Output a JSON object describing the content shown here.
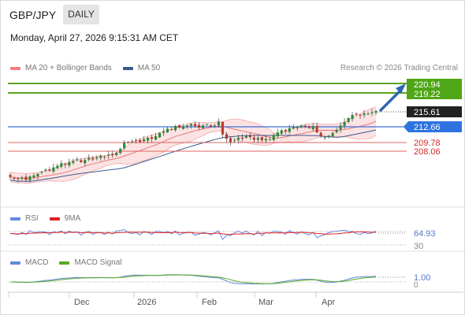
{
  "header": {
    "symbol": "GBP/JPY",
    "timeframe": "DAILY",
    "datetime": "Monday, April 27, 2026 9:15:31 AM CET"
  },
  "legend": {
    "bollinger": "MA 20 + Bollinger Bands",
    "ma50": "MA 50",
    "credit": "Research © 2026 Trading Central"
  },
  "colors": {
    "up_candle": "#2e8b3a",
    "down_candle": "#c0392b",
    "bollinger": "#f08080",
    "ma50": "#3a5a8c",
    "resistance": "#5aa51e",
    "pivot": "#3b6fd6",
    "support": "#e06060",
    "arrow": "#2f66b3",
    "rsi": "#6688dd",
    "rsi_ma": "#dd2222",
    "macd": "#6688dd",
    "macd_signal": "#55aa22"
  },
  "price_levels": [
    {
      "value": "220.94",
      "kind": "resistance"
    },
    {
      "value": "219.22",
      "kind": "resistance"
    },
    {
      "value": "215.61",
      "kind": "last"
    },
    {
      "value": "212.66",
      "kind": "pivot"
    },
    {
      "value": "209.78",
      "kind": "support"
    },
    {
      "value": "208.06",
      "kind": "support"
    }
  ],
  "rsi": {
    "label": "RSI",
    "ma_label": "9MA",
    "value": "64.93",
    "level_low": "30"
  },
  "macd": {
    "label": "MACD",
    "signal_label": "MACD Signal",
    "value": "1.00",
    "zero": "0"
  },
  "chart_data": {
    "type": "candlestick",
    "x_ticks": [
      "Dec",
      "2026",
      "Feb",
      "Mar",
      "Apr"
    ],
    "price_series_approx": [
      203.2,
      203.0,
      202.8,
      203.1,
      202.6,
      203.3,
      203.5,
      203.8,
      204.2,
      204.6,
      204.4,
      205.0,
      205.3,
      205.8,
      205.5,
      206.0,
      206.2,
      206.5,
      206.0,
      206.4,
      206.8,
      206.5,
      206.9,
      207.2,
      207.0,
      207.4,
      207.3,
      207.8,
      208.5,
      209.6,
      209.8,
      209.9,
      210.1,
      209.8,
      210.3,
      210.6,
      210.4,
      210.9,
      211.5,
      211.8,
      212.3,
      212.1,
      212.8,
      212.5,
      212.7,
      212.9,
      213.2,
      212.8,
      212.5,
      212.9,
      213.1,
      212.7,
      212.9,
      213.6,
      211.2,
      210.4,
      209.8,
      210.1,
      210.6,
      210.4,
      210.9,
      210.7,
      210.2,
      210.6,
      210.1,
      210.4,
      210.3,
      211.1,
      211.6,
      212.0,
      211.8,
      212.4,
      212.6,
      212.5,
      212.9,
      212.7,
      212.4,
      212.8,
      211.6,
      210.9,
      210.7,
      211.0,
      211.5,
      212.1,
      212.9,
      213.6,
      214.3,
      214.9,
      215.0,
      214.8,
      215.2,
      215.1,
      215.4,
      215.61
    ],
    "rsi_current": 64.93,
    "macd_current": 1.0
  }
}
